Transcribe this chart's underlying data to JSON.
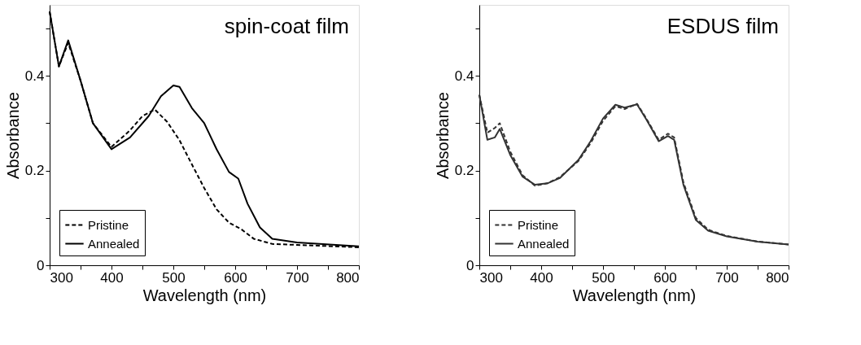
{
  "chart_data": [
    {
      "type": "line",
      "title": "spin-coat film",
      "xlabel": "Wavelength (nm)",
      "ylabel": "Absorbance",
      "xlim": [
        300,
        800
      ],
      "ylim": [
        0,
        0.55
      ],
      "xticks": [
        300,
        {
          "value": 350,
          "label": null
        },
        400,
        {
          "value": 450,
          "label": null
        },
        500,
        {
          "value": 550,
          "label": null
        },
        600,
        {
          "value": 650,
          "label": null
        },
        700,
        {
          "value": 750,
          "label": null
        },
        800
      ],
      "yticks": [
        0,
        {
          "value": 0.1,
          "label": null
        },
        0.2,
        {
          "value": 0.3,
          "label": null
        },
        0.4,
        {
          "value": 0.5,
          "label": null
        }
      ],
      "grid": false,
      "legend": "bottom left",
      "series": [
        {
          "name": "Pristine",
          "color": "#000000",
          "line_style": "dashed",
          "x": [
            300,
            315,
            330,
            350,
            370,
            400,
            430,
            450,
            470,
            490,
            510,
            530,
            550,
            570,
            590,
            610,
            630,
            660,
            700,
            800
          ],
          "values": [
            0.536,
            0.42,
            0.47,
            0.39,
            0.3,
            0.25,
            0.285,
            0.315,
            0.329,
            0.303,
            0.264,
            0.213,
            0.163,
            0.118,
            0.09,
            0.076,
            0.056,
            0.045,
            0.043,
            0.038
          ]
        },
        {
          "name": "Annealed",
          "color": "#000000",
          "line_style": "solid",
          "x": [
            300,
            315,
            330,
            350,
            370,
            400,
            430,
            460,
            480,
            500,
            510,
            530,
            550,
            570,
            590,
            605,
            620,
            640,
            660,
            700,
            800
          ],
          "values": [
            0.536,
            0.42,
            0.475,
            0.39,
            0.3,
            0.245,
            0.27,
            0.315,
            0.357,
            0.38,
            0.377,
            0.332,
            0.3,
            0.245,
            0.197,
            0.183,
            0.13,
            0.08,
            0.056,
            0.048,
            0.04
          ]
        }
      ]
    },
    {
      "type": "line",
      "title": "ESDUS film",
      "xlabel": "Wavelength (nm)",
      "ylabel": "Absorbance",
      "xlim": [
        300,
        800
      ],
      "ylim": [
        0,
        0.55
      ],
      "xticks": [
        300,
        {
          "value": 350,
          "label": null
        },
        400,
        {
          "value": 450,
          "label": null
        },
        500,
        {
          "value": 550,
          "label": null
        },
        600,
        {
          "value": 650,
          "label": null
        },
        700,
        {
          "value": 750,
          "label": null
        },
        800
      ],
      "yticks": [
        0,
        {
          "value": 0.1,
          "label": null
        },
        0.2,
        {
          "value": 0.3,
          "label": null
        },
        0.4,
        {
          "value": 0.5,
          "label": null
        }
      ],
      "grid": false,
      "legend": "bottom left",
      "series": [
        {
          "name": "Pristine",
          "color": "#333333",
          "line_style": "dashed",
          "x": [
            300,
            313,
            325,
            333,
            350,
            370,
            390,
            410,
            430,
            460,
            480,
            500,
            520,
            535,
            555,
            570,
            590,
            605,
            615,
            630,
            650,
            670,
            700,
            750,
            800
          ],
          "values": [
            0.36,
            0.28,
            0.29,
            0.3,
            0.24,
            0.19,
            0.168,
            0.173,
            0.186,
            0.22,
            0.258,
            0.305,
            0.336,
            0.33,
            0.341,
            0.31,
            0.265,
            0.278,
            0.27,
            0.175,
            0.1,
            0.075,
            0.062,
            0.05,
            0.044
          ]
        },
        {
          "name": "Annealed",
          "color": "#333333",
          "line_style": "solid",
          "x": [
            300,
            313,
            325,
            333,
            350,
            370,
            390,
            410,
            430,
            460,
            480,
            500,
            520,
            535,
            555,
            570,
            590,
            605,
            615,
            630,
            650,
            670,
            700,
            750,
            800
          ],
          "values": [
            0.36,
            0.265,
            0.27,
            0.288,
            0.233,
            0.187,
            0.17,
            0.173,
            0.184,
            0.222,
            0.262,
            0.31,
            0.339,
            0.333,
            0.34,
            0.308,
            0.262,
            0.273,
            0.265,
            0.17,
            0.096,
            0.073,
            0.061,
            0.05,
            0.044
          ]
        }
      ]
    }
  ]
}
